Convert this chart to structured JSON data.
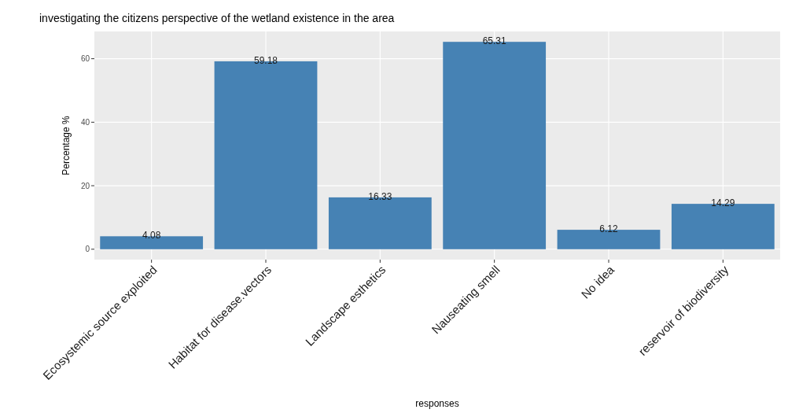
{
  "chart_data": {
    "type": "bar",
    "title": "investigating the citizens perspective of the wetland existence in the area",
    "xlabel": "responses",
    "ylabel": "Percentage %",
    "categories": [
      "Ecosystemic source exploited",
      "Habitat for disease.vectors",
      "Landscape esthetics",
      "Nauseating smell",
      "No idea",
      "reservoir of biodiversity"
    ],
    "values": [
      4.08,
      59.18,
      16.33,
      65.31,
      6.12,
      14.29
    ],
    "color": "#4682b4",
    "data_labels": true,
    "ylim": [
      -3.27,
      68.58
    ],
    "yticks": [
      0,
      20,
      40,
      60
    ],
    "grid": true
  }
}
